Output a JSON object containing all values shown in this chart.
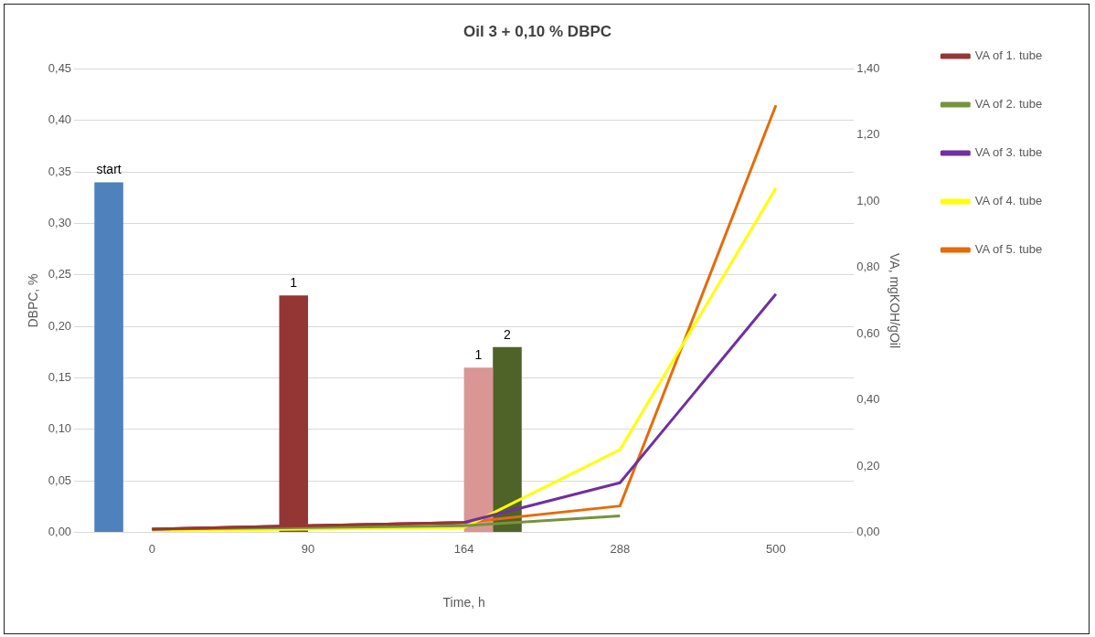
{
  "chart_data": {
    "type": "bar",
    "title": "Oil 3 + 0,10 % DBPC",
    "xlabel": "Time, h",
    "ylabel": "DBPC, %",
    "y2label": "VA, mgKOH/gOil",
    "categories": [
      "0",
      "90",
      "164",
      "288",
      "500"
    ],
    "series": [
      {
        "color": "#4f81bd",
        "values": [
          0.34,
          null,
          null,
          null,
          null
        ]
      },
      {
        "color": "#943634",
        "values": [
          null,
          0.23,
          null,
          null,
          null
        ]
      },
      {
        "color": "#d99694",
        "values": [
          null,
          null,
          0.16,
          null,
          null
        ]
      },
      {
        "color": "#4f6228",
        "values": [
          null,
          null,
          0.18,
          null,
          null
        ]
      },
      {
        "type": "line",
        "name": "VA of 1. tube",
        "color": "#953735",
        "axis": "y2",
        "values": [
          0.01,
          0.02,
          0.03,
          null,
          null
        ]
      },
      {
        "type": "line",
        "name": "VA of 2. tube",
        "color": "#77933c",
        "axis": "y2",
        "values": [
          0.01,
          0.015,
          0.02,
          0.05,
          null
        ]
      },
      {
        "type": "line",
        "name": "VA of 3. tube",
        "color": "#7030a0",
        "axis": "y2",
        "values": [
          0.01,
          0.02,
          0.03,
          0.15,
          0.72
        ]
      },
      {
        "type": "line",
        "name": "VA of 4. tube",
        "color": "#ffff00",
        "axis": "y2",
        "values": [
          0.005,
          0.01,
          0.015,
          0.25,
          1.04
        ]
      },
      {
        "type": "line",
        "name": "VA of 5. tube",
        "color": "#e46c0a",
        "axis": "y2",
        "values": [
          0.01,
          0.02,
          0.03,
          0.08,
          1.29
        ]
      }
    ],
    "ylim": [
      0,
      0.45
    ],
    "yticks": [
      {
        "value": 0,
        "label": "0,00"
      },
      {
        "value": 0.05,
        "label": "0,05"
      },
      {
        "value": 0.1,
        "label": "0,10"
      },
      {
        "value": 0.15,
        "label": "0,15"
      },
      {
        "value": 0.2,
        "label": "0,20"
      },
      {
        "value": 0.25,
        "label": "0,25"
      },
      {
        "value": 0.3,
        "label": "0,30"
      },
      {
        "value": 0.35,
        "label": "0,35"
      },
      {
        "value": 0.4,
        "label": "0,40"
      },
      {
        "value": 0.45,
        "label": "0,45"
      }
    ],
    "y2lim": [
      0,
      1.4
    ],
    "y2ticks": [
      {
        "value": 0,
        "label": "0,00"
      },
      {
        "value": 0.2,
        "label": "0,20"
      },
      {
        "value": 0.4,
        "label": "0,40"
      },
      {
        "value": 0.6,
        "label": "0,60"
      },
      {
        "value": 0.8,
        "label": "0,80"
      },
      {
        "value": 1,
        "label": "1,00"
      },
      {
        "value": 1.2,
        "label": "1,20"
      },
      {
        "value": 1.4,
        "label": "1,40"
      }
    ],
    "annotations": [
      "start",
      "1",
      "1",
      "2"
    ],
    "grid": "y",
    "legend": "right",
    "marker": "none",
    "line_style": "solid"
  }
}
